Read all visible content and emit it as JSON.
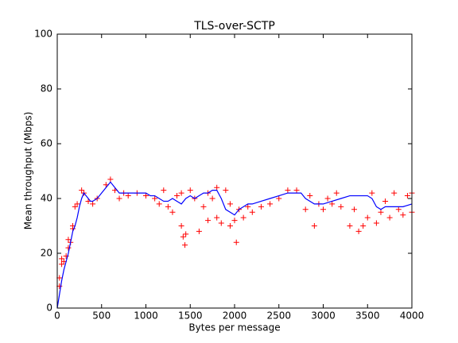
{
  "chart_data": {
    "type": "line",
    "title": "TLS-over-SCTP",
    "xlabel": "Bytes per message",
    "ylabel": "Mean throughput (Mbps)",
    "xlim": [
      0,
      4000
    ],
    "ylim": [
      0,
      100
    ],
    "xticks": [
      0,
      500,
      1000,
      1500,
      2000,
      2500,
      3000,
      3500,
      4000
    ],
    "yticks": [
      0,
      20,
      40,
      60,
      80,
      100
    ],
    "grid": false,
    "series": [
      {
        "color": "#ff0000",
        "marker": "+",
        "linestyle": "none",
        "x": [
          25,
          25,
          50,
          50,
          75,
          100,
          125,
          125,
          150,
          175,
          175,
          200,
          225,
          275,
          300,
          350,
          400,
          450,
          550,
          600,
          650,
          700,
          750,
          800,
          900,
          1000,
          1100,
          1150,
          1200,
          1250,
          1300,
          1350,
          1400,
          1400,
          1420,
          1440,
          1450,
          1500,
          1550,
          1600,
          1650,
          1700,
          1700,
          1750,
          1800,
          1800,
          1850,
          1900,
          1950,
          1950,
          2000,
          2020,
          2050,
          2100,
          2150,
          2200,
          2300,
          2400,
          2500,
          2600,
          2700,
          2800,
          2850,
          2900,
          2950,
          3000,
          3050,
          3100,
          3150,
          3200,
          3300,
          3350,
          3400,
          3450,
          3500,
          3550,
          3600,
          3650,
          3700,
          3750,
          3800,
          3850,
          3900,
          3950,
          4000,
          4000
        ],
        "values": [
          8,
          11,
          16,
          18,
          17,
          19,
          22,
          25,
          24,
          29,
          30,
          37,
          38,
          43,
          42,
          39,
          38,
          40,
          45,
          47,
          43,
          40,
          42,
          41,
          42,
          41,
          40,
          38,
          43,
          37,
          35,
          41,
          30,
          42,
          26,
          23,
          27,
          43,
          40,
          28,
          37,
          32,
          42,
          40,
          33,
          44,
          31,
          43,
          38,
          30,
          32,
          24,
          36,
          33,
          37,
          35,
          37,
          38,
          40,
          43,
          43,
          36,
          41,
          30,
          38,
          36,
          40,
          38,
          42,
          37,
          30,
          36,
          28,
          30,
          33,
          42,
          31,
          35,
          39,
          33,
          42,
          36,
          34,
          41,
          35,
          42
        ]
      },
      {
        "color": "#0000ff",
        "linestyle": "solid",
        "x": [
          0,
          25,
          50,
          75,
          100,
          125,
          150,
          175,
          200,
          225,
          250,
          275,
          300,
          325,
          350,
          375,
          400,
          450,
          500,
          550,
          600,
          650,
          700,
          750,
          800,
          850,
          900,
          950,
          1000,
          1050,
          1100,
          1150,
          1200,
          1250,
          1300,
          1350,
          1400,
          1450,
          1500,
          1550,
          1600,
          1650,
          1700,
          1750,
          1800,
          1850,
          1900,
          1950,
          2000,
          2050,
          2100,
          2150,
          2200,
          2300,
          2400,
          2500,
          2600,
          2700,
          2750,
          2800,
          2900,
          3000,
          3100,
          3200,
          3300,
          3400,
          3500,
          3550,
          3600,
          3650,
          3700,
          3800,
          3900,
          4000
        ],
        "values": [
          0,
          5,
          10,
          14,
          17,
          20,
          24,
          28,
          30,
          33,
          37,
          40,
          42,
          41,
          40,
          39,
          39,
          40,
          42,
          44,
          46,
          44,
          42,
          42,
          42,
          42,
          42,
          42,
          42,
          41,
          41,
          40,
          39,
          39,
          40,
          39,
          38,
          40,
          41,
          40,
          41,
          42,
          42,
          43,
          43,
          40,
          36,
          35,
          34,
          36,
          37,
          38,
          38,
          39,
          40,
          41,
          42,
          42,
          42,
          40,
          38,
          38,
          39,
          40,
          41,
          41,
          41,
          40,
          37,
          36,
          37,
          37,
          37,
          38
        ]
      }
    ]
  }
}
